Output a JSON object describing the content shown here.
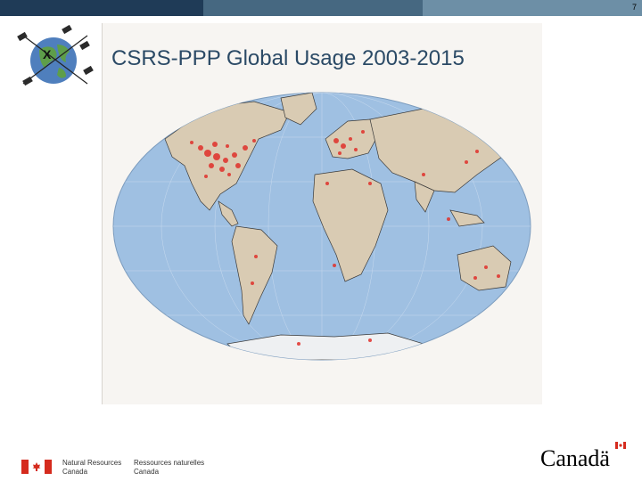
{
  "slide": {
    "page_number": "7",
    "title": "CSRS-PPP Global Usage 2003-2015"
  },
  "footer": {
    "dept_en_line1": "Natural Resources",
    "dept_en_line2": "Canada",
    "dept_fr_line1": "Ressources naturelles",
    "dept_fr_line2": "Canada",
    "wordmark": "Canadä"
  },
  "icons": {
    "logo": "satellite-globe-icon",
    "flag": "canada-flag-icon"
  },
  "colors": {
    "bar_dark": "#1f3b57",
    "bar_mid": "#466881",
    "bar_light": "#6d8fa6",
    "ocean": "#9fc0e2",
    "land": "#d9cbb3",
    "usage_dots": "#e0302a",
    "title": "#2b4a66"
  }
}
